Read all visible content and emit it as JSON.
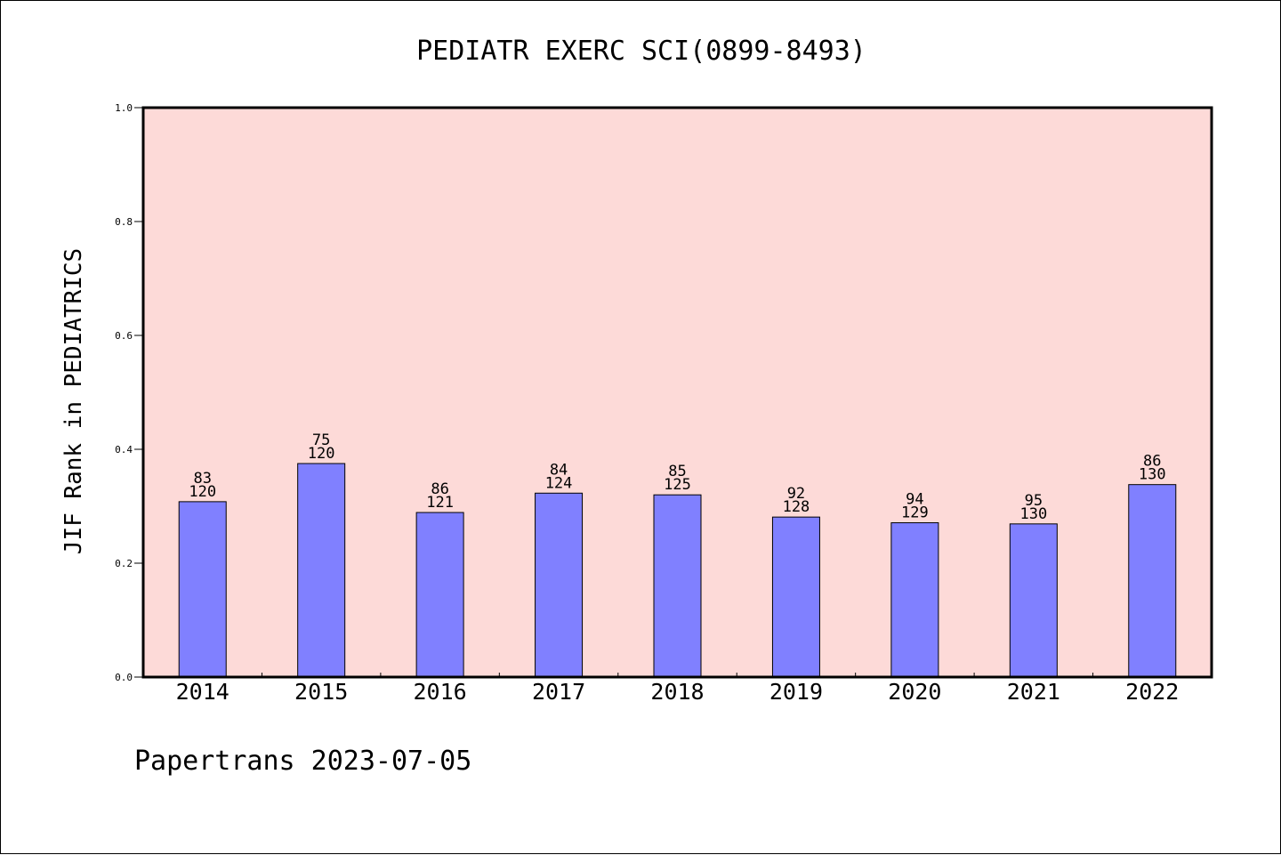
{
  "chart_data": {
    "type": "bar",
    "title": "PEDIATR EXERC SCI(0899-8493)",
    "ylabel": "JIF Rank in PEDIATRICS",
    "xlabel": "",
    "categories": [
      "2014",
      "2015",
      "2016",
      "2017",
      "2018",
      "2019",
      "2020",
      "2021",
      "2022"
    ],
    "values": [
      0.308,
      0.375,
      0.289,
      0.323,
      0.32,
      0.281,
      0.271,
      0.269,
      0.338
    ],
    "rank": [
      "83",
      "75",
      "86",
      "84",
      "85",
      "92",
      "94",
      "95",
      "86"
    ],
    "total": [
      "120",
      "120",
      "121",
      "124",
      "125",
      "128",
      "129",
      "130",
      "130"
    ],
    "ylim": [
      0,
      1.0
    ],
    "yticks": [
      "0.0",
      "0.2",
      "0.4",
      "0.6",
      "0.8",
      "1.0"
    ],
    "grid": false,
    "colors": {
      "bar": "#8080ff",
      "plot_bg": "#fddad8"
    }
  },
  "footer": "Papertrans 2023-07-05"
}
